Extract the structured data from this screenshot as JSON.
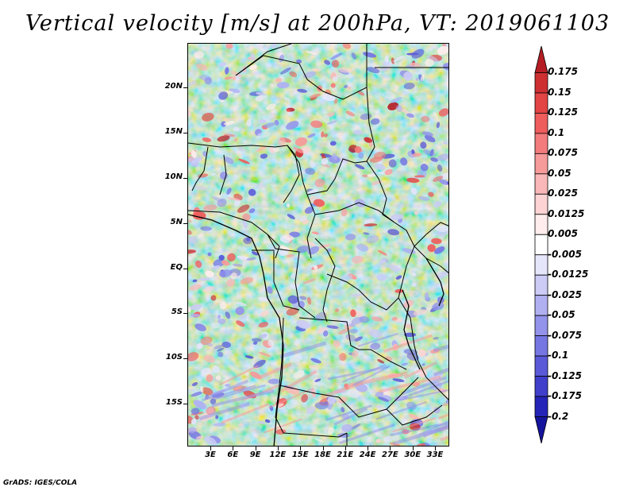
{
  "title": "Vertical velocity [m/s] at 200hPa, VT: 2019061103",
  "lat_labels": [
    "20N",
    "15N",
    "10N",
    "5N",
    "EQ",
    "5S",
    "10S",
    "15S"
  ],
  "lon_labels": [
    "3E",
    "6E",
    "9E",
    "12E",
    "15E",
    "18E",
    "21E",
    "24E",
    "27E",
    "30E",
    "33E"
  ],
  "colorbar": {
    "labels": [
      "0.175",
      "0.15",
      "0.125",
      "0.1",
      "0.075",
      "0.05",
      "0.025",
      "0.0125",
      "0.005",
      "-0.005",
      "-0.0125",
      "-0.025",
      "-0.05",
      "-0.075",
      "-0.1",
      "-0.125",
      "-0.175",
      "-0.2"
    ],
    "colors": [
      "#b41e24",
      "#ce2f31",
      "#e34444",
      "#ef5c5c",
      "#f37b7b",
      "#f79a9a",
      "#fab7b7",
      "#fdd3d3",
      "#ffeded",
      "#ffffff",
      "#e6e6fb",
      "#cbcbf6",
      "#b0b0f1",
      "#9393eb",
      "#7676e3",
      "#5a5ad9",
      "#3f3fcc",
      "#2424b8",
      "#14149c"
    ]
  },
  "credit": "GrADS: IGES/COLA"
}
